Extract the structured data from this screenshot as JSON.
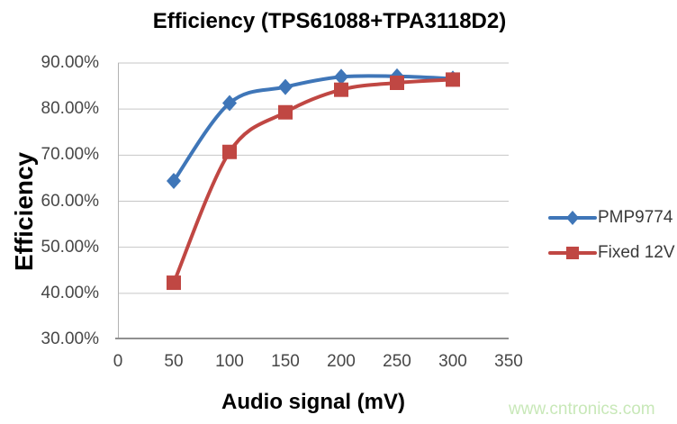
{
  "chart_data": {
    "type": "line",
    "title": "Efficiency (TPS61088+TPA3118D2)",
    "xlabel": "Audio signal (mV)",
    "ylabel": "Efficiency",
    "x": [
      50,
      100,
      150,
      200,
      250,
      300
    ],
    "series": [
      {
        "name": "PMP9774",
        "color": "#3F76B8",
        "marker": "diamond",
        "values": [
          64.4,
          81.3,
          84.8,
          87.0,
          87.1,
          86.6
        ]
      },
      {
        "name": "Fixed 12V",
        "color": "#C04743",
        "marker": "square",
        "values": [
          42.3,
          70.7,
          79.3,
          84.2,
          85.7,
          86.4
        ]
      }
    ],
    "xlim": [
      0,
      350
    ],
    "ylim": [
      30,
      90
    ],
    "xticks": {
      "values": [
        0,
        50,
        100,
        150,
        200,
        250,
        300,
        350
      ],
      "labels": [
        "0",
        "50",
        "100",
        "150",
        "200",
        "250",
        "300",
        "350"
      ]
    },
    "yticks": {
      "values": [
        90,
        80,
        70,
        60,
        50,
        40,
        30
      ],
      "labels": [
        "90.00%",
        "80.00%",
        "70.00%",
        "60.00%",
        "50.00%",
        "40.00%",
        "30.00%"
      ]
    },
    "grid": "horizontal",
    "legend_position": "right",
    "grid_color": "#c6c6c6",
    "axis_color": "#909090",
    "smooth_lines": true
  },
  "watermark": {
    "text": "www.cntronics.com",
    "color": "#c8e8b8"
  }
}
